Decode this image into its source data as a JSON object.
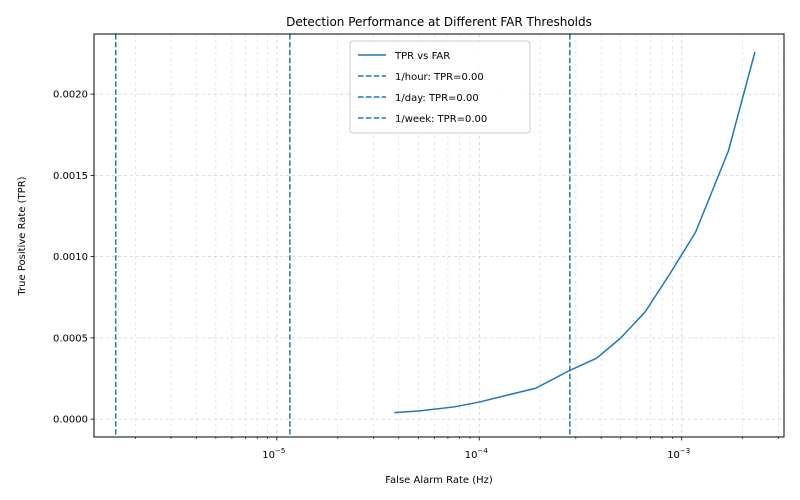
{
  "chart_data": {
    "type": "line",
    "title": "Detection Performance at Different FAR Thresholds",
    "xlabel": "False Alarm Rate (Hz)",
    "ylabel": "True Positive Rate (TPR)",
    "xscale": "log",
    "xlim": [
      1.25e-06,
      0.0032
    ],
    "ylim": [
      -0.00011,
      0.00237
    ],
    "grid": true,
    "legend_position": "top-center",
    "series": [
      {
        "name": "TPR vs FAR",
        "color": "#1f77b4",
        "style": "solid",
        "x": [
          3.8e-05,
          5e-05,
          7.5e-05,
          0.0001,
          0.00014,
          0.00019,
          0.00028,
          0.00038,
          0.0005,
          0.00066,
          0.00088,
          0.00117,
          0.0017,
          0.0023
        ],
        "y": [
          4e-05,
          5e-05,
          7.5e-05,
          0.000105,
          0.00015,
          0.00019,
          0.0003,
          0.000375,
          0.0005,
          0.00066,
          0.0009,
          0.00115,
          0.00165,
          0.00226
        ]
      }
    ],
    "vlines": [
      {
        "name": "1/hour: TPR=0.00",
        "x": 1.6e-06,
        "color": "#1f77b4",
        "style": "dashed"
      },
      {
        "name": "1/day: TPR=0.00",
        "x": 1.16e-05,
        "color": "#1f77b4",
        "style": "dashed"
      },
      {
        "name": "1/week: TPR=0.00",
        "x": 0.00028,
        "color": "#1f77b4",
        "style": "dashed"
      }
    ],
    "x_major_ticks": [
      {
        "value": 1e-05,
        "base": "10",
        "exp": "−5"
      },
      {
        "value": 0.0001,
        "base": "10",
        "exp": "−4"
      },
      {
        "value": 0.001,
        "base": "10",
        "exp": "−3"
      }
    ],
    "y_ticks": [
      {
        "value": 0,
        "label": "0.0000"
      },
      {
        "value": 0.0005,
        "label": "0.0005"
      },
      {
        "value": 0.001,
        "label": "0.0010"
      },
      {
        "value": 0.0015,
        "label": "0.0015"
      },
      {
        "value": 0.002,
        "label": "0.0020"
      }
    ]
  }
}
